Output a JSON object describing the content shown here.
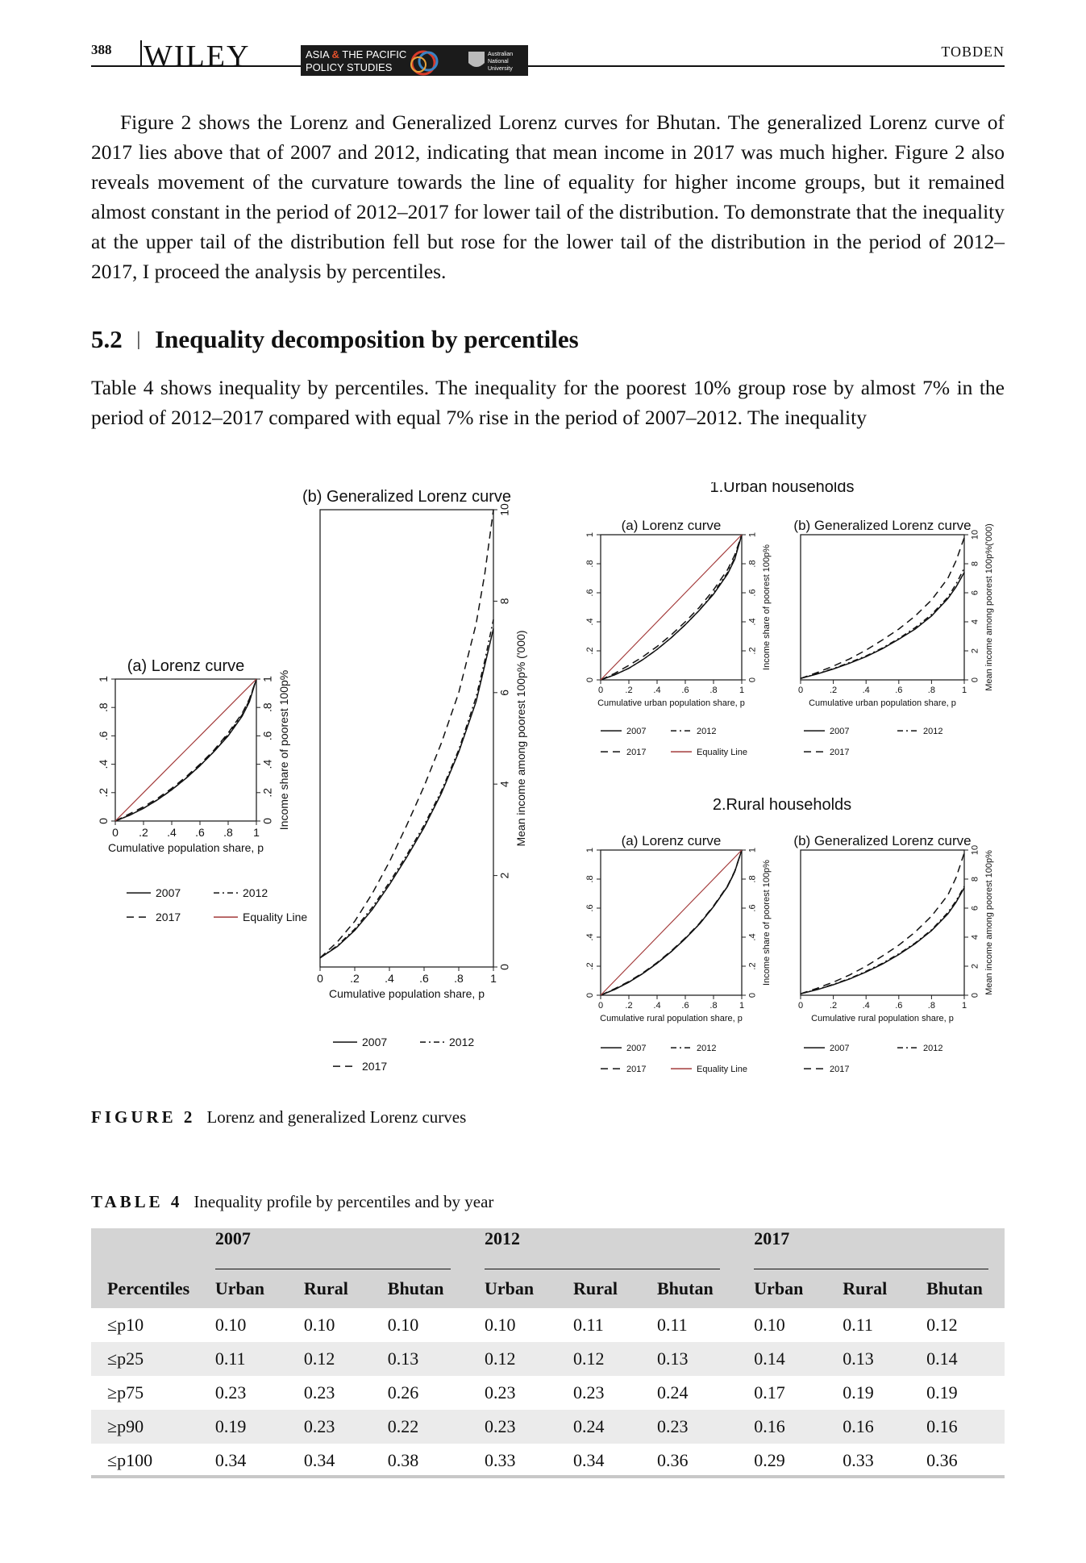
{
  "header": {
    "page_number": "388",
    "publisher": "WILEY",
    "badge_line1_a": "ASIA ",
    "badge_amp": "&",
    "badge_line1_b": " THE PACIFIC",
    "badge_line2": "POLICY STUDIES",
    "badge_uni1": "Australian",
    "badge_uni2": "National",
    "badge_uni3": "University",
    "author": "TOBDEN"
  },
  "body": {
    "para1": "Figure 2 shows the Lorenz and Generalized Lorenz curves for Bhutan. The generalized Lorenz curve of 2017 lies above that of 2007 and 2012, indicating that mean income in 2017 was much higher. Figure 2 also reveals movement of the curvature towards the line of equality for higher income groups, but it remained almost constant in the period of 2012–2017 for lower tail of the distribution. To demonstrate that the inequality at the upper tail of the distribution fell but rose for the lower tail of the distribution in the period of 2012–2017, I proceed the analysis by percentiles.",
    "section_number": "5.2",
    "section_sep": "|",
    "section_title": "Inequality decomposition by percentiles",
    "para2": "Table 4 shows inequality by percentiles. The inequality for the poorest 10% group rose by almost 7% in the period of 2012–2017 compared with equal 7% rise in the period of 2007–2012. The inequality"
  },
  "chart_data": [
    {
      "type": "line",
      "panel": "bhutan-lorenz",
      "title": "(a) Lorenz curve",
      "xlabel": "Cumulative population share, p",
      "ylabel": "Income share of poorest 100p%",
      "xlim": [
        0,
        1
      ],
      "ylim": [
        0,
        1
      ],
      "xticks": [
        "0",
        ".2",
        ".4",
        ".6",
        ".8",
        "1"
      ],
      "yticks": [
        "0",
        ".2",
        ".4",
        ".6",
        ".8",
        "1"
      ],
      "x": [
        0,
        0.1,
        0.2,
        0.3,
        0.4,
        0.5,
        0.6,
        0.7,
        0.8,
        0.9,
        0.95,
        1
      ],
      "series": [
        {
          "name": "2007",
          "style": "solid",
          "values": [
            0,
            0.04,
            0.09,
            0.15,
            0.22,
            0.3,
            0.39,
            0.49,
            0.6,
            0.74,
            0.84,
            1
          ]
        },
        {
          "name": "2012",
          "style": "dashdot",
          "values": [
            0,
            0.04,
            0.09,
            0.15,
            0.22,
            0.3,
            0.39,
            0.49,
            0.61,
            0.75,
            0.85,
            1
          ]
        },
        {
          "name": "2017",
          "style": "longdash",
          "values": [
            0,
            0.05,
            0.1,
            0.16,
            0.23,
            0.31,
            0.4,
            0.5,
            0.62,
            0.76,
            0.86,
            1
          ]
        },
        {
          "name": "Equality Line",
          "style": "solid-red",
          "values": [
            0,
            0.1,
            0.2,
            0.3,
            0.4,
            0.5,
            0.6,
            0.7,
            0.8,
            0.9,
            0.95,
            1
          ]
        }
      ],
      "legend": [
        "2007",
        "2012",
        "2017",
        "Equality Line"
      ]
    },
    {
      "type": "line",
      "panel": "bhutan-generalized",
      "title": "(b) Generalized Lorenz curve",
      "xlabel": "Cumulative population share, p",
      "ylabel": "Mean income among poorest 100p% ('000)",
      "xlim": [
        0,
        1
      ],
      "ylim": [
        0,
        10
      ],
      "xticks": [
        "0",
        ".2",
        ".4",
        ".6",
        ".8",
        "1"
      ],
      "yticks": [
        "0",
        "2",
        "4",
        "6",
        "8",
        "10"
      ],
      "x": [
        0,
        0.1,
        0.2,
        0.3,
        0.4,
        0.5,
        0.6,
        0.7,
        0.8,
        0.9,
        0.95,
        1
      ],
      "series": [
        {
          "name": "2007",
          "style": "solid",
          "values": [
            0.2,
            0.45,
            0.8,
            1.25,
            1.8,
            2.4,
            3.05,
            3.8,
            4.7,
            5.8,
            6.6,
            7.4
          ]
        },
        {
          "name": "2012",
          "style": "dashdot",
          "values": [
            0.2,
            0.47,
            0.83,
            1.3,
            1.85,
            2.45,
            3.1,
            3.85,
            4.75,
            5.9,
            6.7,
            7.6
          ]
        },
        {
          "name": "2017",
          "style": "longdash",
          "values": [
            0.2,
            0.55,
            1.0,
            1.6,
            2.3,
            3.1,
            3.95,
            4.9,
            6.0,
            7.5,
            8.6,
            10.0
          ]
        }
      ],
      "legend": [
        "2007",
        "2012",
        "2017"
      ]
    },
    {
      "type": "line",
      "panel": "urban-lorenz",
      "group_title": "1.Urban households",
      "title": "(a) Lorenz curve",
      "xlabel": "Cumulative urban population share, p",
      "ylabel": "Income share of poorest 100p%",
      "xlim": [
        0,
        1
      ],
      "ylim": [
        0,
        1
      ],
      "xticks": [
        "0",
        ".2",
        ".4",
        ".6",
        ".8",
        "1"
      ],
      "yticks": [
        "0",
        ".2",
        ".4",
        ".6",
        ".8",
        "1"
      ],
      "x": [
        0,
        0.1,
        0.2,
        0.3,
        0.4,
        0.5,
        0.6,
        0.7,
        0.8,
        0.9,
        0.95,
        1
      ],
      "series": [
        {
          "name": "2007",
          "style": "solid",
          "values": [
            0,
            0.035,
            0.08,
            0.14,
            0.21,
            0.29,
            0.38,
            0.48,
            0.59,
            0.73,
            0.83,
            1
          ]
        },
        {
          "name": "2012",
          "style": "dashdot",
          "values": [
            0,
            0.035,
            0.08,
            0.14,
            0.21,
            0.29,
            0.38,
            0.48,
            0.6,
            0.74,
            0.84,
            1
          ]
        },
        {
          "name": "2017",
          "style": "longdash",
          "values": [
            0,
            0.045,
            0.1,
            0.16,
            0.23,
            0.31,
            0.4,
            0.5,
            0.62,
            0.76,
            0.86,
            1
          ]
        },
        {
          "name": "Equality Line",
          "style": "solid-red",
          "values": [
            0,
            0.1,
            0.2,
            0.3,
            0.4,
            0.5,
            0.6,
            0.7,
            0.8,
            0.9,
            0.95,
            1
          ]
        }
      ],
      "legend": [
        "2007",
        "2012",
        "2017",
        "Equality Line"
      ]
    },
    {
      "type": "line",
      "panel": "urban-generalized",
      "title": "(b) Generalized Lorenz curve",
      "xlabel": "Cumulative urban population share, p",
      "ylabel": "Mean income among poorest 100p%('000)",
      "xlim": [
        0,
        1
      ],
      "ylim": [
        0,
        10
      ],
      "xticks": [
        "0",
        ".2",
        ".4",
        ".6",
        ".8",
        "1"
      ],
      "yticks": [
        "0",
        "2",
        "4",
        "6",
        "8",
        "10"
      ],
      "x": [
        0,
        0.1,
        0.2,
        0.3,
        0.4,
        0.5,
        0.6,
        0.7,
        0.8,
        0.9,
        0.95,
        1
      ],
      "series": [
        {
          "name": "2007",
          "style": "solid",
          "values": [
            0.1,
            0.4,
            0.75,
            1.15,
            1.6,
            2.15,
            2.8,
            3.5,
            4.4,
            5.6,
            6.4,
            7.4
          ]
        },
        {
          "name": "2012",
          "style": "dashdot",
          "values": [
            0.1,
            0.42,
            0.78,
            1.2,
            1.65,
            2.2,
            2.85,
            3.6,
            4.5,
            5.7,
            6.6,
            7.7
          ]
        },
        {
          "name": "2017",
          "style": "longdash",
          "values": [
            0.1,
            0.5,
            0.95,
            1.45,
            2.05,
            2.75,
            3.5,
            4.4,
            5.5,
            7.0,
            8.2,
            9.8
          ]
        }
      ],
      "legend": [
        "2007",
        "2012",
        "2017"
      ]
    },
    {
      "type": "line",
      "panel": "rural-lorenz",
      "group_title": "2.Rural households",
      "title": "(a) Lorenz curve",
      "xlabel": "Cumulative rural population share, p",
      "ylabel": "Income share of poorest 100p%",
      "xlim": [
        0,
        1
      ],
      "ylim": [
        0,
        1
      ],
      "xticks": [
        "0",
        ".2",
        ".4",
        ".6",
        ".8",
        "1"
      ],
      "yticks": [
        "0",
        ".2",
        ".4",
        ".6",
        ".8",
        "1"
      ],
      "x": [
        0,
        0.1,
        0.2,
        0.3,
        0.4,
        0.5,
        0.6,
        0.7,
        0.8,
        0.9,
        0.95,
        1
      ],
      "series": [
        {
          "name": "2007",
          "style": "solid",
          "values": [
            0,
            0.04,
            0.09,
            0.15,
            0.22,
            0.3,
            0.39,
            0.49,
            0.61,
            0.75,
            0.85,
            1
          ]
        },
        {
          "name": "2012",
          "style": "dashdot",
          "values": [
            0,
            0.04,
            0.09,
            0.15,
            0.22,
            0.3,
            0.39,
            0.49,
            0.61,
            0.75,
            0.85,
            1
          ]
        },
        {
          "name": "2017",
          "style": "longdash",
          "values": [
            0,
            0.045,
            0.095,
            0.155,
            0.225,
            0.305,
            0.395,
            0.495,
            0.615,
            0.755,
            0.855,
            1
          ]
        },
        {
          "name": "Equality Line",
          "style": "solid-red",
          "values": [
            0,
            0.1,
            0.2,
            0.3,
            0.4,
            0.5,
            0.6,
            0.7,
            0.8,
            0.9,
            0.95,
            1
          ]
        }
      ],
      "legend": [
        "2007",
        "2012",
        "2017",
        "Equality Line"
      ]
    },
    {
      "type": "line",
      "panel": "rural-generalized",
      "title": "(b) Generalized Lorenz curve",
      "xlabel": "Cumulative rural population share, p",
      "ylabel": "Mean income among poorest 100p%",
      "xlim": [
        0,
        1
      ],
      "ylim": [
        0,
        10
      ],
      "xticks": [
        "0",
        ".2",
        ".4",
        ".6",
        ".8",
        "1"
      ],
      "yticks": [
        "0",
        "2",
        "4",
        "6",
        "8",
        "10"
      ],
      "x": [
        0,
        0.1,
        0.2,
        0.3,
        0.4,
        0.5,
        0.6,
        0.7,
        0.8,
        0.9,
        0.95,
        1
      ],
      "series": [
        {
          "name": "2007",
          "style": "solid",
          "values": [
            0.1,
            0.38,
            0.72,
            1.12,
            1.6,
            2.15,
            2.8,
            3.55,
            4.45,
            5.6,
            6.4,
            7.4
          ]
        },
        {
          "name": "2012",
          "style": "dashdot",
          "values": [
            0.1,
            0.4,
            0.75,
            1.15,
            1.65,
            2.2,
            2.85,
            3.6,
            4.5,
            5.7,
            6.5,
            7.5
          ]
        },
        {
          "name": "2017",
          "style": "longdash",
          "values": [
            0.1,
            0.48,
            0.9,
            1.4,
            2.0,
            2.7,
            3.45,
            4.35,
            5.45,
            6.9,
            8.1,
            9.8
          ]
        }
      ],
      "legend": [
        "2007",
        "2012",
        "2017"
      ]
    }
  ],
  "figure": {
    "label": "FIGURE 2",
    "caption": "Lorenz and generalized Lorenz curves"
  },
  "table": {
    "label": "TABLE 4",
    "caption": "Inequality profile by percentiles and by year",
    "row_header": "Percentiles",
    "years": [
      "2007",
      "2012",
      "2017"
    ],
    "subcols": [
      "Urban",
      "Rural",
      "Bhutan"
    ],
    "rows": [
      {
        "label": "≤p10",
        "values": [
          "0.10",
          "0.10",
          "0.10",
          "0.10",
          "0.11",
          "0.11",
          "0.10",
          "0.11",
          "0.12"
        ]
      },
      {
        "label": "≤p25",
        "values": [
          "0.11",
          "0.12",
          "0.13",
          "0.12",
          "0.12",
          "0.13",
          "0.14",
          "0.13",
          "0.14"
        ]
      },
      {
        "label": "≥p75",
        "values": [
          "0.23",
          "0.23",
          "0.26",
          "0.23",
          "0.23",
          "0.24",
          "0.17",
          "0.19",
          "0.19"
        ]
      },
      {
        "label": "≥p90",
        "values": [
          "0.19",
          "0.23",
          "0.22",
          "0.23",
          "0.24",
          "0.23",
          "0.16",
          "0.16",
          "0.16"
        ]
      },
      {
        "label": "≤p100",
        "values": [
          "0.34",
          "0.34",
          "0.38",
          "0.33",
          "0.34",
          "0.36",
          "0.29",
          "0.33",
          "0.36"
        ]
      }
    ]
  }
}
